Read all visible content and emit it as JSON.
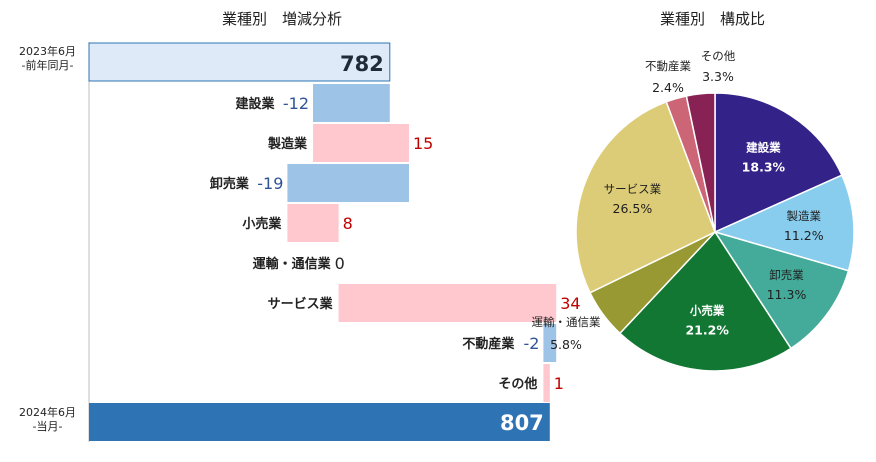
{
  "waterfall": {
    "title": "業種別　増減分析",
    "start": {
      "label_line1": "2023年6月",
      "label_line2": "-前年同月-",
      "value": 782
    },
    "end": {
      "label_line1": "2024年6月",
      "label_line2": "-当月-",
      "value": 807
    },
    "colors": {
      "start": "#deeaf7",
      "end": "#2e74b5",
      "negative": "#9dc3e6",
      "positive": "#ffc7ce",
      "negative_text": "#2f5496",
      "positive_text": "#c00000"
    }
  },
  "pie": {
    "title": "業種別　構成比"
  },
  "chart_data": [
    {
      "type": "bar",
      "subtype": "waterfall",
      "title": "業種別　増減分析",
      "start_value": 782,
      "end_value": 807,
      "categories": [
        "建設業",
        "製造業",
        "卸売業",
        "小売業",
        "運輸・通信業",
        "サービス業",
        "不動産業",
        "その他"
      ],
      "values": [
        -12,
        15,
        -19,
        8,
        0,
        34,
        -2,
        1
      ],
      "value_labels": [
        "-12",
        "15",
        "-19",
        "8",
        "0",
        "34",
        "-2",
        "1"
      ]
    },
    {
      "type": "pie",
      "title": "業種別　構成比",
      "categories": [
        "建設業",
        "製造業",
        "卸売業",
        "小売業",
        "運輸・通信業",
        "サービス業",
        "不動産業",
        "その他"
      ],
      "values": [
        18.3,
        11.2,
        11.3,
        21.2,
        5.8,
        26.5,
        2.4,
        3.3
      ],
      "value_labels": [
        "18.3%",
        "11.2%",
        "11.3%",
        "21.2%",
        "5.8%",
        "26.5%",
        "2.4%",
        "3.3%"
      ],
      "colors": [
        "#332288",
        "#88ccee",
        "#44aa99",
        "#117733",
        "#999933",
        "#ddcc77",
        "#cc6677",
        "#882255"
      ],
      "label_inside": [
        true,
        true,
        true,
        true,
        false,
        true,
        false,
        false
      ],
      "label_dark": [
        false,
        true,
        true,
        false,
        true,
        true,
        true,
        true
      ]
    }
  ]
}
